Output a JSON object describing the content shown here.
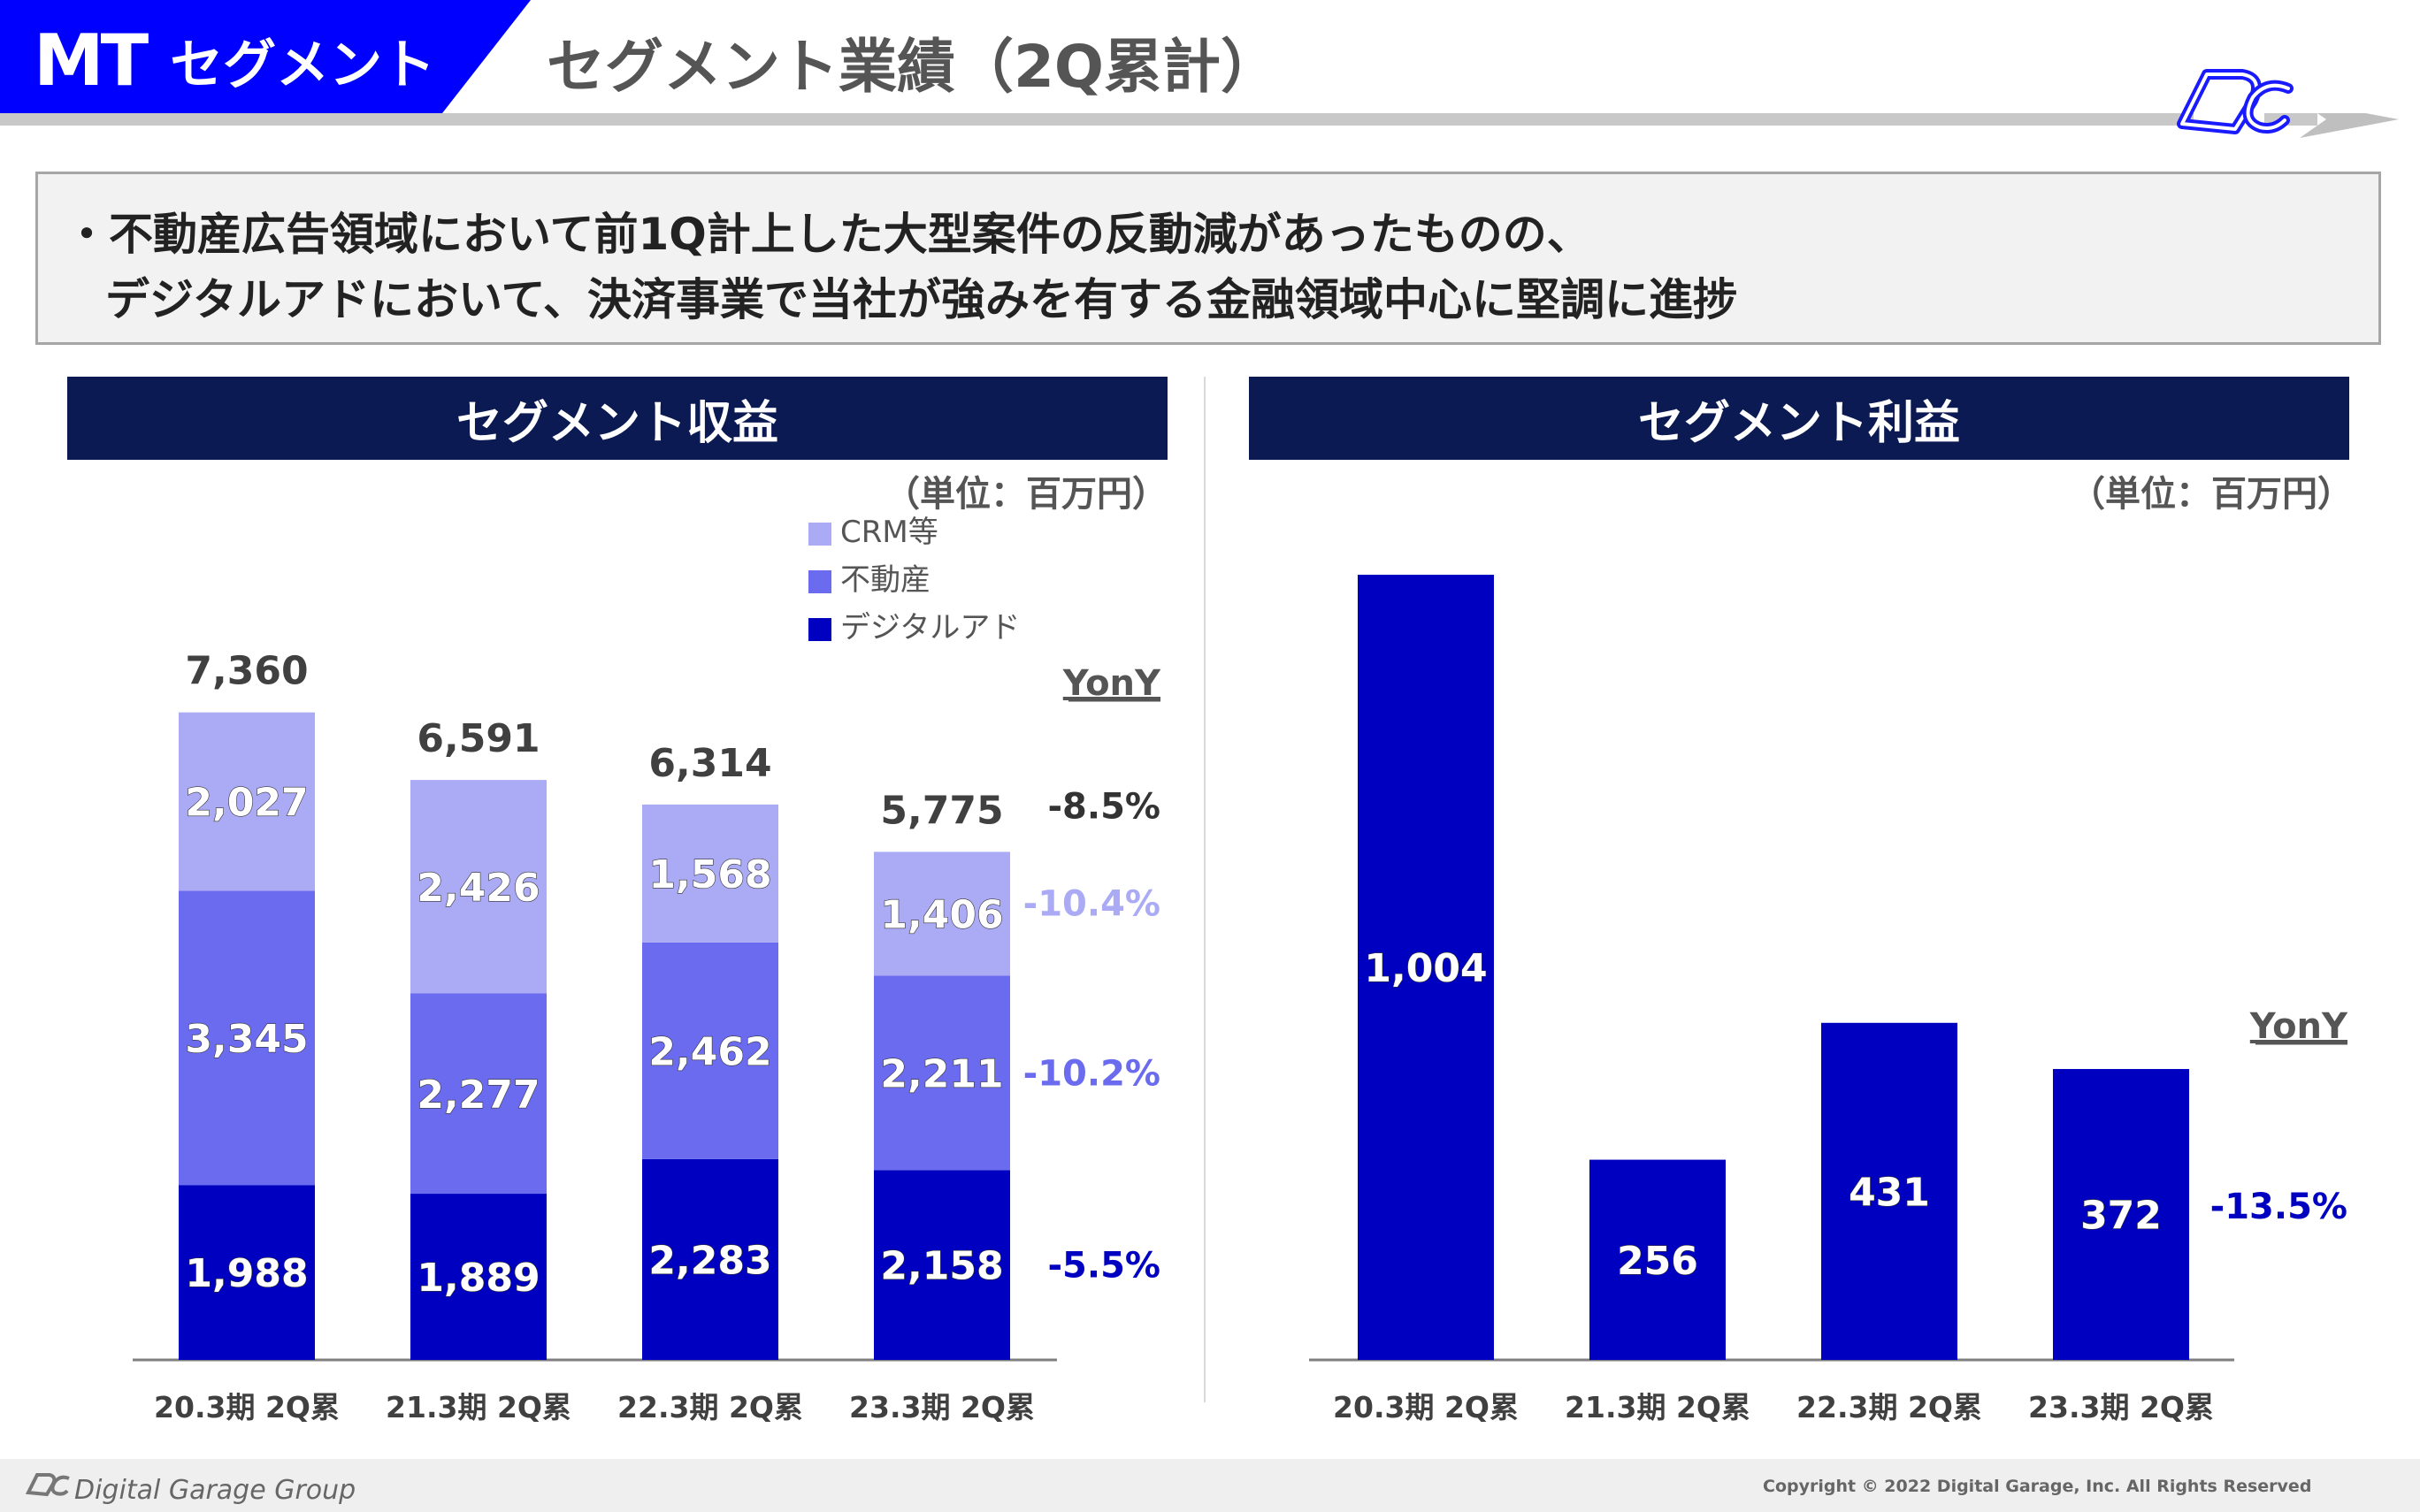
{
  "header": {
    "tag_mt": "MT",
    "tag_segment": "セグメント",
    "title": "セグメント業績（2Q累計）"
  },
  "summary": {
    "line1": "・不動産広告領域において前1Q計上した大型案件の反動減があったものの、",
    "line2": "デジタルアドにおいて、決済事業で当社が強みを有する金融領域中心に堅調に進捗"
  },
  "left_panel": {
    "title": "セグメント収益",
    "unit": "（単位：百万円）"
  },
  "right_panel": {
    "title": "セグメント利益",
    "unit": "（単位：百万円）"
  },
  "colors": {
    "navy_header": "#0b1a52",
    "crm": "#aaaaf5",
    "realestate": "#6b6bef",
    "digital_ad": "#0000c0",
    "axis": "#7f7f7f"
  },
  "chart_data": [
    {
      "type": "bar",
      "stacked": true,
      "title": "セグメント収益",
      "unit": "（単位：百万円）",
      "categories": [
        "20.3期 2Q累",
        "21.3期 2Q累",
        "22.3期 2Q累",
        "23.3期 2Q累"
      ],
      "series": [
        {
          "name": "デジタルアド",
          "values": [
            1988,
            1889,
            2283,
            2158
          ],
          "labels": [
            "1,988",
            "1,889",
            "2,283",
            "2,158"
          ],
          "color": "#0000c0",
          "yony": "-5.5%",
          "yony_color": "#0000c0"
        },
        {
          "name": "不動産",
          "values": [
            3345,
            2277,
            2462,
            2211
          ],
          "labels": [
            "3,345",
            "2,277",
            "2,462",
            "2,211"
          ],
          "color": "#6b6bef",
          "yony": "-10.2%",
          "yony_color": "#6b6bef"
        },
        {
          "name": "CRM等",
          "values": [
            2027,
            2426,
            1568,
            1406
          ],
          "labels": [
            "2,027",
            "2,426",
            "1,568",
            "1,406"
          ],
          "color": "#aaaaf5",
          "yony": "-10.4%",
          "yony_color": "#aaaaf5"
        }
      ],
      "totals": [
        7360,
        6591,
        6314,
        5775
      ],
      "total_labels": [
        "7,360",
        "6,591",
        "6,314",
        "5,775"
      ],
      "legend": [
        "CRM等",
        "不動産",
        "デジタルアド"
      ],
      "legend_position": "top-right",
      "yony_header": "YonY",
      "total_yony": "-8.5%",
      "total_yony_color": "#333333",
      "ylim": [
        0,
        8000
      ],
      "grid": false
    },
    {
      "type": "bar",
      "title": "セグメント利益",
      "unit": "（単位：百万円）",
      "categories": [
        "20.3期 2Q累",
        "21.3期 2Q累",
        "22.3期 2Q累",
        "23.3期 2Q累"
      ],
      "values": [
        1004,
        256,
        431,
        372
      ],
      "labels": [
        "1,004",
        "256",
        "431",
        "372"
      ],
      "color": "#0000c0",
      "yony_header": "YonY",
      "yony": "-13.5%",
      "yony_color": "#0000c0",
      "ylim": [
        0,
        1004
      ],
      "grid": false
    }
  ],
  "footer": {
    "group": "Digital Garage Group",
    "copyright": "Copyright © 2022 Digital Garage, Inc. All Rights Reserved"
  }
}
